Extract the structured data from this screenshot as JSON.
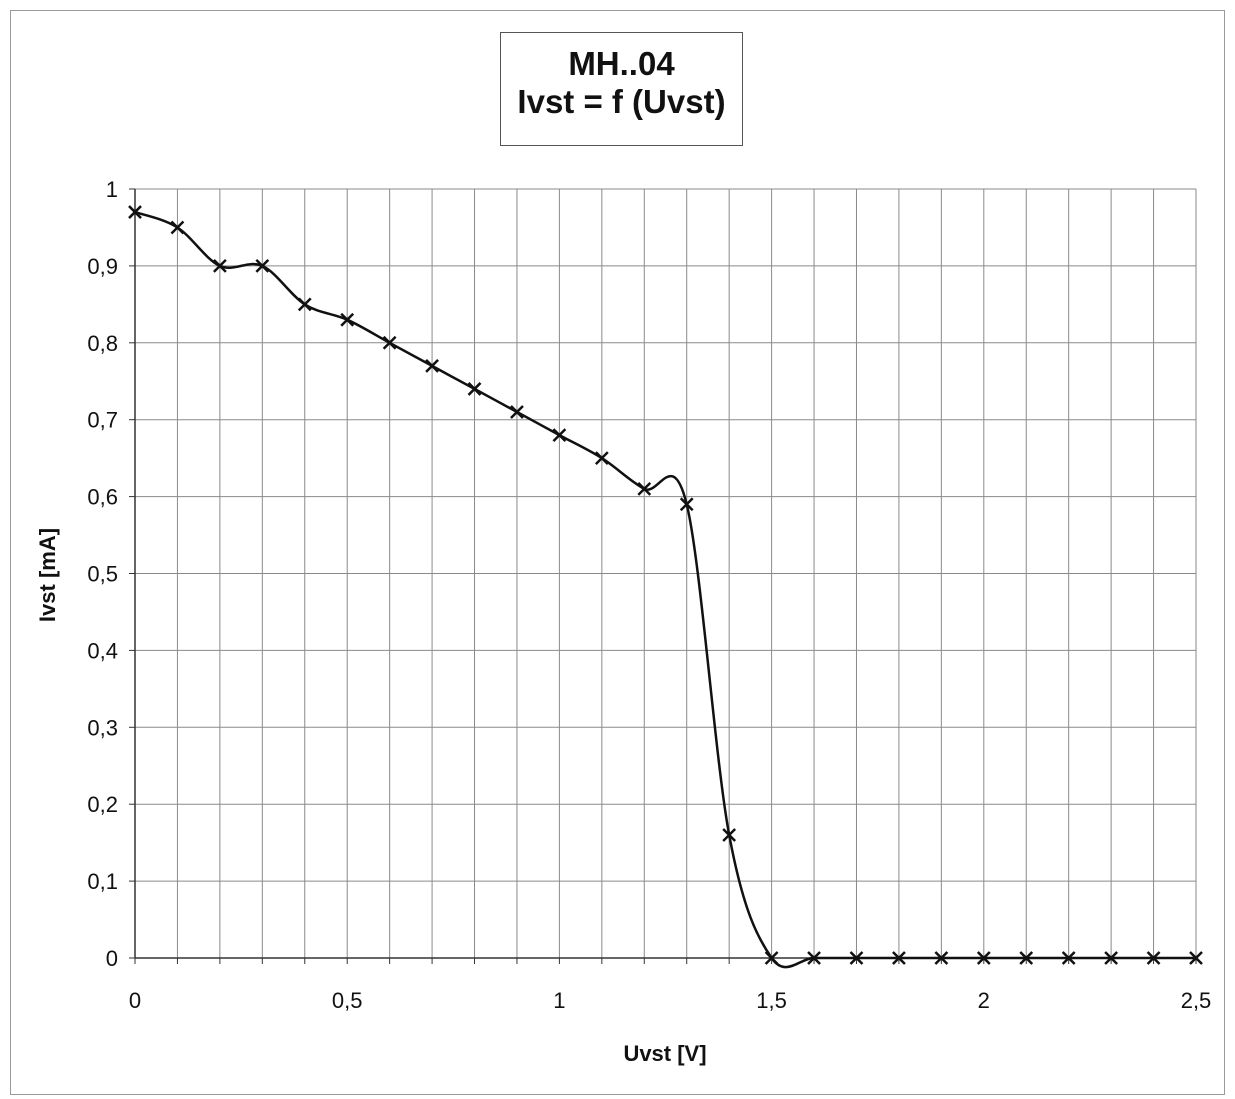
{
  "chart_data": {
    "type": "line",
    "title": "MH..04",
    "subtitle": "Ivst = f (Uvst)",
    "xlabel": "Uvst [V]",
    "ylabel": "Ivst [mA]",
    "xlim": [
      0,
      2.5
    ],
    "ylim": [
      0,
      1
    ],
    "x_ticks": [
      "0",
      "0,5",
      "1",
      "1,5",
      "2",
      "2,5"
    ],
    "y_ticks": [
      "0",
      "0,1",
      "0,2",
      "0,3",
      "0,4",
      "0,5",
      "0,6",
      "0,7",
      "0,8",
      "0,9",
      "1"
    ],
    "grid": true,
    "marker": "x",
    "line_color": "#111111",
    "series": [
      {
        "x": [
          0,
          0.1,
          0.2,
          0.3,
          0.4,
          0.5,
          0.6,
          0.7,
          0.8,
          0.9,
          1.0,
          1.1,
          1.2,
          1.3,
          1.4,
          1.5,
          1.6,
          1.7,
          1.8,
          1.9,
          2.0,
          2.1,
          2.2,
          2.3,
          2.4,
          2.5
        ],
        "values": [
          0.97,
          0.95,
          0.9,
          0.9,
          0.85,
          0.83,
          0.8,
          0.77,
          0.74,
          0.71,
          0.68,
          0.65,
          0.61,
          0.59,
          0.16,
          0,
          0,
          0,
          0,
          0,
          0,
          0,
          0,
          0,
          0,
          0
        ]
      }
    ]
  }
}
